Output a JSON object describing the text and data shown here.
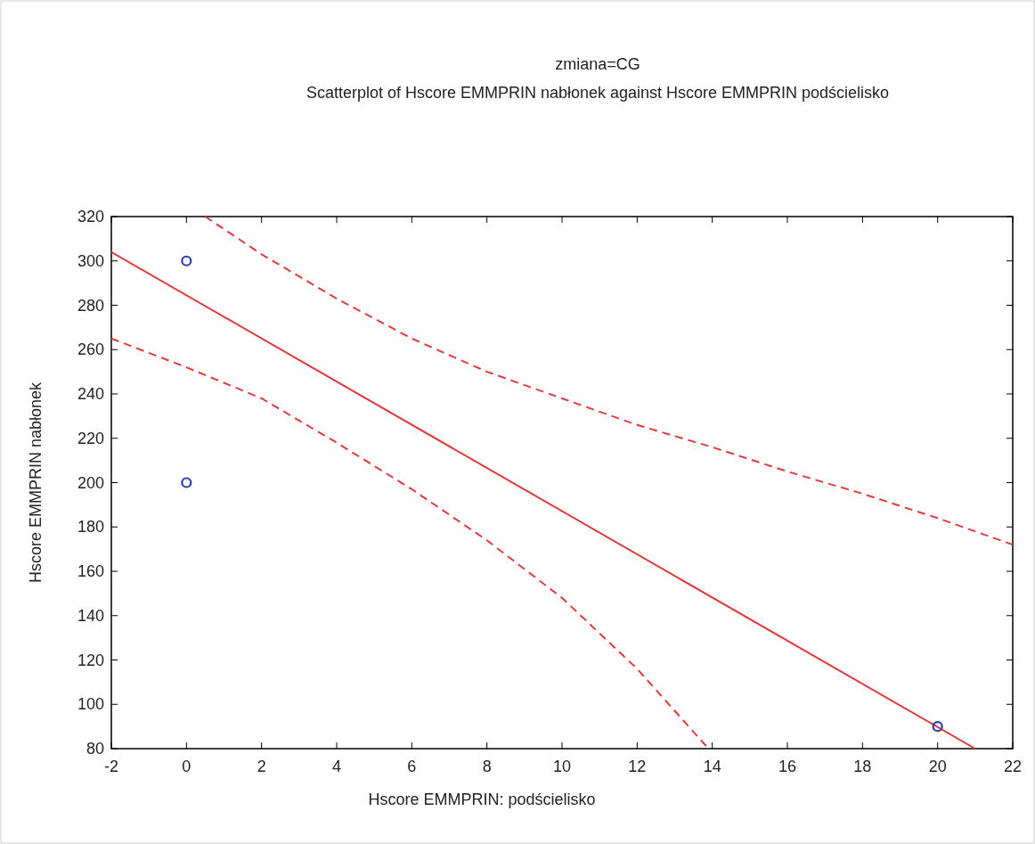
{
  "chart_data": {
    "type": "scatter",
    "title": "zmiana=CG",
    "subtitle": "Scatterplot of Hscore EMMPRIN nabłonek against Hscore  EMMPRIN podścielisko",
    "xlabel": "Hscore  EMMPRIN: podścielisko",
    "ylabel": "Hscore  EMMPRIN nabłonek",
    "xlim": [
      -2,
      22
    ],
    "ylim": [
      80,
      320
    ],
    "xticks": [
      -2,
      0,
      2,
      4,
      6,
      8,
      10,
      12,
      14,
      16,
      18,
      20,
      22
    ],
    "yticks": [
      80,
      100,
      120,
      140,
      160,
      180,
      200,
      220,
      240,
      260,
      280,
      300,
      320
    ],
    "grid": false,
    "series": [
      {
        "type": "line",
        "color": "#e03a3a",
        "marker": "none",
        "line_style": "dashed",
        "x": [
          0.5,
          2,
          4,
          6,
          8,
          10,
          12,
          14,
          16,
          18,
          20,
          22
        ],
        "values": [
          320,
          303,
          283,
          265,
          250,
          238,
          226,
          216,
          205,
          195,
          184,
          172
        ]
      },
      {
        "type": "line",
        "color": "#e03a3a",
        "marker": "none",
        "line_style": "dashed",
        "x": [
          -2,
          0,
          2,
          4,
          6,
          8,
          10,
          12,
          13.9
        ],
        "values": [
          265,
          252,
          238,
          218,
          197,
          174,
          148,
          116,
          80
        ]
      },
      {
        "type": "line",
        "color": "#e03a3a",
        "marker": "none",
        "line_style": "solid",
        "x": [
          -2,
          21
        ],
        "values": [
          304,
          80
        ]
      },
      {
        "color": "#2a3cb0",
        "marker": "circle",
        "x": [
          0,
          0,
          20
        ],
        "values": [
          300,
          200,
          90
        ]
      }
    ]
  }
}
